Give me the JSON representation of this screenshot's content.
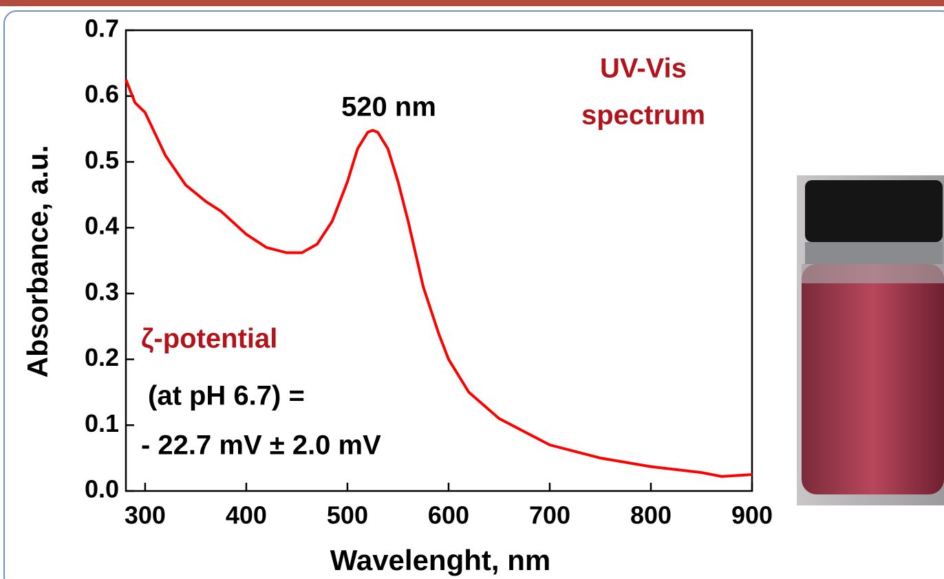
{
  "chart_data": {
    "type": "line",
    "x_label": "Wavelenght, nm",
    "y_label": "Absorbance, a.u.",
    "annotations": [
      "520 nm",
      "UV-Vis",
      "spectrum",
      "ζ-potential",
      "(at pH 6.7) =",
      "- 22.7 mV ± 2.0 mV"
    ],
    "color": "#ff0000",
    "x": [
      281,
      290,
      300,
      320,
      340,
      360,
      375,
      400,
      420,
      440,
      455,
      470,
      485,
      500,
      510,
      520,
      525,
      530,
      540,
      550,
      560,
      575,
      590,
      600,
      620,
      650,
      700,
      750,
      800,
      850,
      870,
      900
    ],
    "values": [
      0.625,
      0.59,
      0.575,
      0.51,
      0.465,
      0.44,
      0.425,
      0.39,
      0.37,
      0.362,
      0.362,
      0.375,
      0.41,
      0.47,
      0.52,
      0.545,
      0.548,
      0.545,
      0.52,
      0.47,
      0.41,
      0.31,
      0.24,
      0.2,
      0.15,
      0.11,
      0.07,
      0.05,
      0.037,
      0.028,
      0.022,
      0.025
    ],
    "xlim": [
      281,
      900
    ],
    "ylim": [
      0,
      0.7
    ],
    "xticks": [
      300,
      400,
      500,
      600,
      700,
      800,
      900
    ],
    "yticks": [
      {
        "value": 0,
        "label": "0.0"
      },
      0.1,
      0.2,
      0.3,
      0.4,
      0.5,
      0.6,
      0.7
    ]
  }
}
